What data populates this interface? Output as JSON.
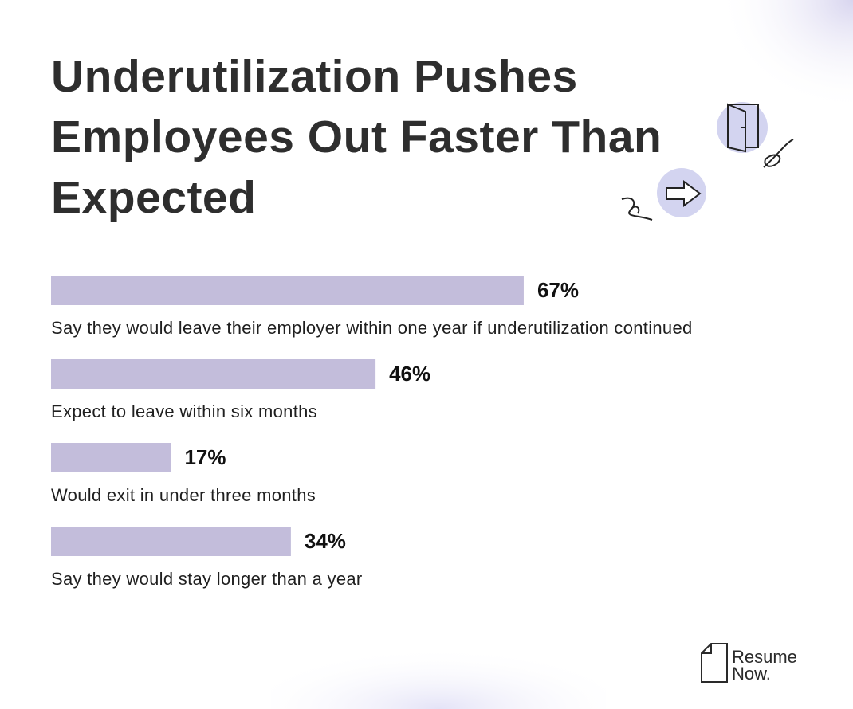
{
  "chart_data": {
    "type": "bar",
    "orientation": "horizontal",
    "title": "Underutilization Pushes Employees Out Faster Than Expected",
    "categories": [
      "Say they would leave their employer within one year if underutilization continued",
      "Expect to leave within six months",
      "Would exit in under three months",
      "Say they would stay longer than a year"
    ],
    "values": [
      67,
      46,
      17,
      34
    ],
    "value_labels": [
      "67%",
      "46%",
      "17%",
      "34%"
    ],
    "color": "#c3bddb"
  },
  "brand": {
    "lines": [
      "Resume",
      "Now."
    ]
  }
}
